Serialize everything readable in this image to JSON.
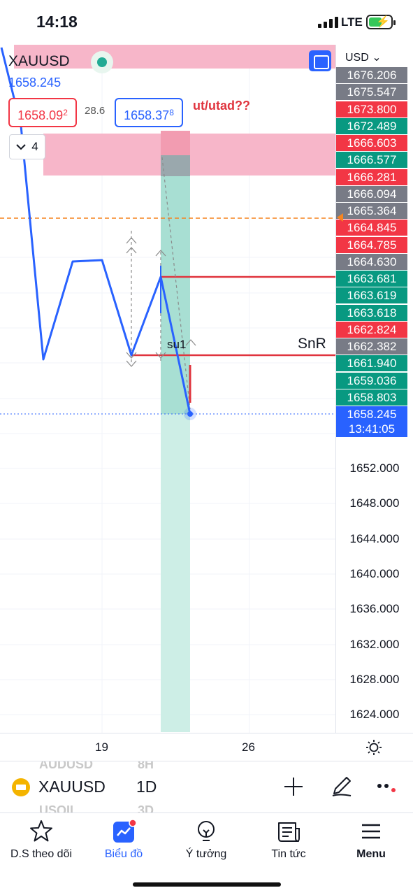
{
  "status_bar": {
    "time": "14:18",
    "network": "LTE"
  },
  "chart": {
    "symbol": "XAUUSD",
    "last_price": "1658.245",
    "bid": {
      "main": "1658.09",
      "sup": "2"
    },
    "spread": "28.6",
    "ask": {
      "main": "1658.37",
      "sup": "8"
    },
    "indicator_count": "4",
    "currency": "USD",
    "note": "ut/utad??",
    "level_label": "SnR",
    "drawing_label": "su1",
    "colors": {
      "accent": "#2962ff",
      "up": "#089981",
      "down": "#f23645",
      "neutral": "#787b86",
      "zone": "#f7b6c9",
      "box": "#a8dfd3"
    }
  },
  "price_scale": {
    "tags": [
      {
        "value": "1676.206",
        "color": "#787b86"
      },
      {
        "value": "1675.547",
        "color": "#787b86"
      },
      {
        "value": "1673.800",
        "color": "#f23645"
      },
      {
        "value": "1672.489",
        "color": "#089981"
      },
      {
        "value": "1666.603",
        "color": "#f23645"
      },
      {
        "value": "1666.577",
        "color": "#089981"
      },
      {
        "value": "1666.281",
        "color": "#f23645"
      },
      {
        "value": "1666.094",
        "color": "#787b86"
      },
      {
        "value": "1665.364",
        "color": "#787b86"
      },
      {
        "value": "1664.845",
        "color": "#f23645"
      },
      {
        "value": "1664.785",
        "color": "#f23645"
      },
      {
        "value": "1664.630",
        "color": "#787b86"
      },
      {
        "value": "1663.681",
        "color": "#089981"
      },
      {
        "value": "1663.619",
        "color": "#089981"
      },
      {
        "value": "1663.618",
        "color": "#089981"
      },
      {
        "value": "1662.824",
        "color": "#f23645"
      },
      {
        "value": "1662.382",
        "color": "#787b86"
      },
      {
        "value": "1661.940",
        "color": "#089981"
      },
      {
        "value": "1659.036",
        "color": "#089981"
      },
      {
        "value": "1658.803",
        "color": "#089981"
      }
    ],
    "current": {
      "price": "1658.245",
      "countdown": "13:41:05"
    },
    "labels": [
      "1652.000",
      "1648.000",
      "1644.000",
      "1640.000",
      "1636.000",
      "1632.000",
      "1628.000",
      "1624.000"
    ]
  },
  "time_axis": {
    "labels": [
      "19",
      "26"
    ]
  },
  "symbol_bar": {
    "symbol": "XAUUSD",
    "interval": "1D",
    "ghost_above": {
      "symbol": "AUDUSD",
      "interval": "8H"
    },
    "ghost_below": {
      "symbol": "USOIL",
      "interval": "3D"
    }
  },
  "nav": {
    "items": [
      {
        "label": "D.S theo dõi",
        "icon": "star-icon"
      },
      {
        "label": "Biểu đồ",
        "icon": "chart-icon"
      },
      {
        "label": "Ý tưởng",
        "icon": "lightbulb-icon"
      },
      {
        "label": "Tin tức",
        "icon": "news-icon"
      },
      {
        "label": "Menu",
        "icon": "menu-icon"
      }
    ],
    "active": "Biểu đồ"
  }
}
